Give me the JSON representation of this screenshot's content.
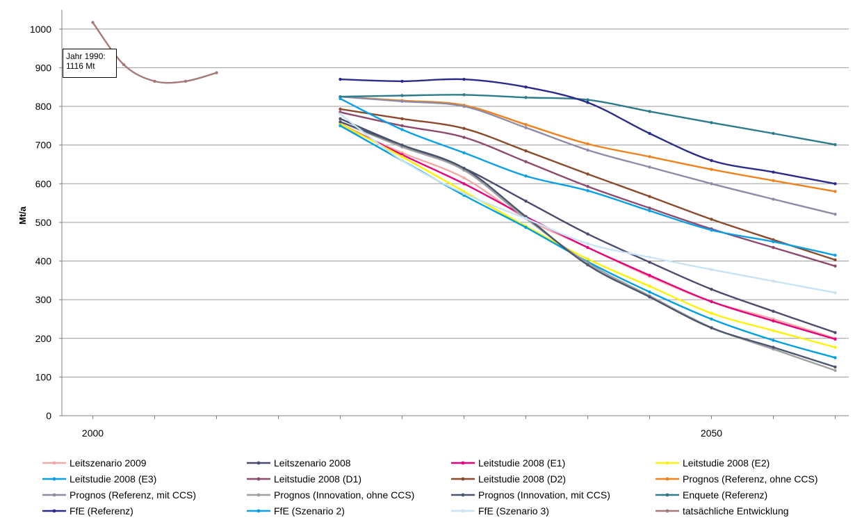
{
  "chart_data": {
    "type": "line",
    "ylabel": "Mt/a",
    "xlabel": "",
    "ylim": [
      0,
      1050
    ],
    "yticks": [
      0,
      100,
      200,
      300,
      400,
      500,
      600,
      700,
      800,
      900,
      1000
    ],
    "xlim": [
      1997.5,
      2060
    ],
    "xtick_labels": [
      {
        "x": 2000,
        "label": "2000"
      },
      {
        "x": 2050,
        "label": "2050"
      }
    ],
    "annotation": "Jahr 1990:\n1116 Mt",
    "grid": "horizontal",
    "legend_position": "bottom",
    "series": [
      {
        "name": "Leitszenario 2009",
        "color": "#F4A8A8",
        "x": [
          2020,
          2025,
          2030,
          2035,
          2040,
          2045,
          2050,
          2055,
          2060
        ],
        "y": [
          750,
          680,
          615,
          510,
          435,
          360,
          295,
          250,
          200
        ]
      },
      {
        "name": "Leitszenario 2008",
        "color": "#4B4B6E",
        "x": [
          2020,
          2025,
          2030,
          2035,
          2040,
          2045,
          2050,
          2055,
          2060
        ],
        "y": [
          768,
          700,
          640,
          555,
          470,
          397,
          327,
          270,
          215
        ]
      },
      {
        "name": "Leitstudie 2008 (E1)",
        "color": "#E6007E",
        "x": [
          2020,
          2025,
          2030,
          2035,
          2040,
          2045,
          2050,
          2055,
          2060
        ],
        "y": [
          755,
          675,
          600,
          515,
          435,
          363,
          295,
          245,
          198
        ]
      },
      {
        "name": "Leitstudie 2008 (E2)",
        "color": "#FFF200",
        "x": [
          2020,
          2025,
          2030,
          2035,
          2040,
          2045,
          2050,
          2055,
          2060
        ],
        "y": [
          755,
          670,
          580,
          490,
          405,
          335,
          265,
          220,
          177
        ]
      },
      {
        "name": "Leitstudie 2008 (E3)",
        "color": "#00A0E0",
        "x": [
          2020,
          2025,
          2030,
          2035,
          2040,
          2045,
          2050,
          2055,
          2060
        ],
        "y": [
          750,
          660,
          570,
          487,
          398,
          320,
          250,
          195,
          150
        ]
      },
      {
        "name": "Leitstudie 2008 (D1)",
        "color": "#8E4A6E",
        "x": [
          2020,
          2025,
          2030,
          2035,
          2040,
          2045,
          2050,
          2055,
          2060
        ],
        "y": [
          785,
          750,
          720,
          657,
          593,
          537,
          483,
          435,
          387
        ]
      },
      {
        "name": "Leitstudie 2008 (D2)",
        "color": "#8B4A2B",
        "x": [
          2020,
          2025,
          2030,
          2035,
          2040,
          2045,
          2050,
          2055,
          2060
        ],
        "y": [
          793,
          768,
          743,
          685,
          625,
          567,
          508,
          455,
          403
        ]
      },
      {
        "name": "Prognos (Referenz, ohne CCS)",
        "color": "#F0821E",
        "x": [
          2020,
          2025,
          2030,
          2035,
          2040,
          2045,
          2050,
          2055,
          2060
        ],
        "y": [
          825,
          815,
          803,
          753,
          703,
          670,
          637,
          608,
          580
        ]
      },
      {
        "name": "Prognos (Referenz, mit CCS)",
        "color": "#8C8CA8",
        "x": [
          2020,
          2025,
          2030,
          2035,
          2040,
          2045,
          2050,
          2055,
          2060
        ],
        "y": [
          825,
          813,
          800,
          745,
          687,
          643,
          600,
          560,
          521
        ]
      },
      {
        "name": "Prognos (Innovation, ohne CCS)",
        "color": "#A0A0A0",
        "x": [
          2020,
          2025,
          2030,
          2035,
          2040,
          2045,
          2050,
          2055,
          2060
        ],
        "y": [
          760,
          695,
          635,
          510,
          395,
          310,
          228,
          172,
          117
        ]
      },
      {
        "name": "Prognos (Innovation, mit CCS)",
        "color": "#4A5570",
        "x": [
          2020,
          2025,
          2030,
          2035,
          2040,
          2045,
          2050,
          2055,
          2060
        ],
        "y": [
          760,
          700,
          640,
          515,
          390,
          307,
          227,
          177,
          126
        ]
      },
      {
        "name": "Enquete (Referenz)",
        "color": "#2E7B8C",
        "x": [
          2020,
          2025,
          2030,
          2035,
          2040,
          2045,
          2050,
          2055,
          2060
        ],
        "y": [
          825,
          828,
          830,
          823,
          817,
          787,
          758,
          730,
          701
        ]
      },
      {
        "name": "FfE (Referenz)",
        "color": "#2B2B8C",
        "x": [
          2020,
          2025,
          2030,
          2035,
          2040,
          2045,
          2050,
          2055,
          2060
        ],
        "y": [
          870,
          865,
          870,
          850,
          810,
          730,
          660,
          630,
          600
        ]
      },
      {
        "name": "FfE (Szenario 2)",
        "color": "#0AA0E6",
        "x": [
          2020,
          2025,
          2030,
          2035,
          2040,
          2045,
          2050,
          2055,
          2060
        ],
        "y": [
          820,
          740,
          680,
          620,
          582,
          530,
          480,
          450,
          415
        ]
      },
      {
        "name": "FfE (Szenario 3)",
        "color": "#C8E4F4",
        "x": [
          2020,
          2025,
          2030,
          2035,
          2040,
          2045,
          2050,
          2055,
          2060
        ],
        "y": [
          780,
          660,
          575,
          510,
          445,
          410,
          378,
          348,
          318
        ]
      },
      {
        "name": "tatsächliche Entwicklung",
        "color": "#A87878",
        "x": [
          2000,
          2002.5,
          2005,
          2007.5,
          2010
        ],
        "y": [
          1017,
          908,
          865,
          865,
          887
        ]
      }
    ]
  }
}
